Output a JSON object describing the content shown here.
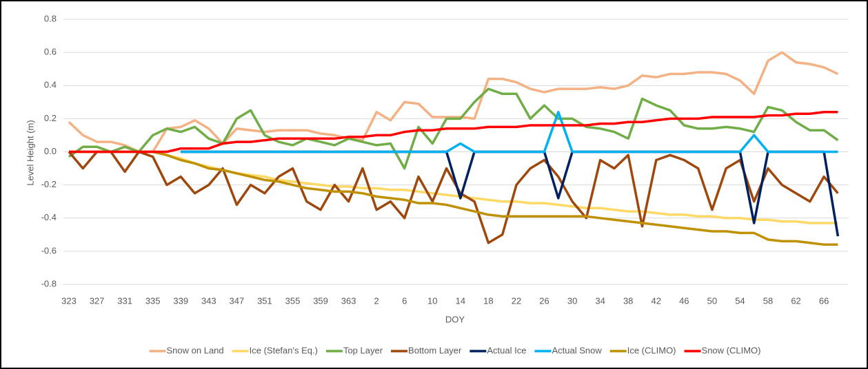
{
  "chart_data": {
    "type": "line",
    "y_label": "Level Height  (m)",
    "x_label": "DOY",
    "categories": [
      323,
      null,
      327,
      null,
      331,
      null,
      335,
      null,
      339,
      null,
      343,
      null,
      347,
      null,
      351,
      null,
      355,
      null,
      359,
      null,
      363,
      null,
      2,
      null,
      6,
      null,
      10,
      null,
      14,
      null,
      18,
      null,
      22,
      null,
      26,
      null,
      30,
      null,
      34,
      null,
      38,
      null,
      42,
      null,
      46,
      null,
      50,
      null,
      54,
      null,
      58,
      null,
      62,
      null,
      66,
      null
    ],
    "ylim": [
      -0.8,
      0.8
    ],
    "yticks": [
      -0.8,
      -0.6,
      -0.4,
      -0.2,
      {
        "value": 0,
        "label": "0.0"
      },
      0.2,
      0.4,
      0.6,
      0.8
    ],
    "grid": true,
    "legend": "bottom",
    "series": [
      {
        "name": "Snow on Land",
        "color": "#f4b183",
        "values": [
          0.18,
          0.1,
          0.06,
          0.06,
          0.04,
          0,
          0,
          0.14,
          0.15,
          0.19,
          0.14,
          0.05,
          0.14,
          0.13,
          0.12,
          0.13,
          0.13,
          0.13,
          0.11,
          0.1,
          0.08,
          0.07,
          0.24,
          0.19,
          0.3,
          0.29,
          0.21,
          0.21,
          0.21,
          0.2,
          0.44,
          0.44,
          0.42,
          0.38,
          0.36,
          0.38,
          0.38,
          0.38,
          0.39,
          0.38,
          0.4,
          0.46,
          0.45,
          0.47,
          0.47,
          0.48,
          0.48,
          0.47,
          0.43,
          0.35,
          0.55,
          0.6,
          0.54,
          0.53,
          0.51,
          0.47
        ]
      },
      {
        "name": "Ice (Stefan's Eq.)",
        "color": "#ffd966",
        "values": [
          0,
          0,
          0,
          0,
          0,
          0,
          0,
          -0.02,
          -0.04,
          -0.07,
          -0.09,
          -0.11,
          -0.13,
          -0.14,
          -0.15,
          -0.17,
          -0.18,
          -0.19,
          -0.2,
          -0.21,
          -0.21,
          -0.22,
          -0.22,
          -0.23,
          -0.23,
          -0.24,
          -0.25,
          -0.26,
          -0.27,
          -0.28,
          -0.29,
          -0.3,
          -0.3,
          -0.31,
          -0.31,
          -0.32,
          -0.33,
          -0.34,
          -0.34,
          -0.35,
          -0.36,
          -0.36,
          -0.37,
          -0.38,
          -0.38,
          -0.39,
          -0.39,
          -0.4,
          -0.4,
          -0.41,
          -0.41,
          -0.42,
          -0.42,
          -0.43,
          -0.43,
          -0.43
        ]
      },
      {
        "name": "Top Layer",
        "color": "#70ad47",
        "values": [
          -0.03,
          0.03,
          0.03,
          0,
          0.03,
          0,
          0.1,
          0.14,
          0.12,
          0.15,
          0.08,
          0.05,
          0.2,
          0.25,
          0.1,
          0.06,
          0.04,
          0.08,
          0.06,
          0.04,
          0.08,
          0.06,
          0.04,
          0.05,
          -0.1,
          0.15,
          0.05,
          0.2,
          0.2,
          0.3,
          0.38,
          0.35,
          0.35,
          0.2,
          0.28,
          0.2,
          0.2,
          0.15,
          0.14,
          0.12,
          0.08,
          0.32,
          0.28,
          0.25,
          0.16,
          0.14,
          0.14,
          0.15,
          0.14,
          0.12,
          0.27,
          0.25,
          0.18,
          0.13,
          0.13,
          0.07
        ]
      },
      {
        "name": "Bottom Layer",
        "color": "#9e480e",
        "values": [
          0,
          -0.1,
          0,
          0,
          -0.12,
          0,
          -0.03,
          -0.2,
          -0.15,
          -0.25,
          -0.2,
          -0.1,
          -0.32,
          -0.2,
          -0.25,
          -0.15,
          -0.1,
          -0.3,
          -0.35,
          -0.2,
          -0.3,
          -0.1,
          -0.35,
          -0.3,
          -0.4,
          -0.15,
          -0.3,
          -0.1,
          -0.25,
          -0.3,
          -0.55,
          -0.5,
          -0.2,
          -0.1,
          -0.05,
          -0.15,
          -0.3,
          -0.4,
          -0.05,
          -0.1,
          -0.02,
          -0.45,
          -0.05,
          -0.02,
          -0.05,
          -0.1,
          -0.35,
          -0.1,
          -0.05,
          -0.3,
          -0.1,
          -0.2,
          -0.25,
          -0.3,
          -0.15,
          -0.25
        ]
      },
      {
        "name": "Actual Ice",
        "color": "#002060",
        "values": [
          null,
          null,
          null,
          null,
          null,
          null,
          null,
          null,
          0,
          0,
          0,
          0,
          0,
          0,
          0,
          0,
          0,
          0,
          0,
          0,
          0,
          0,
          0,
          0,
          0,
          0,
          0,
          0,
          -0.28,
          0,
          0,
          0,
          0,
          0,
          0,
          -0.28,
          0,
          0,
          0,
          0,
          0,
          0,
          0,
          0,
          0,
          0,
          0,
          0,
          0,
          -0.43,
          0,
          0,
          0,
          0,
          0,
          -0.51
        ]
      },
      {
        "name": "Actual Snow",
        "color": "#00b0f0",
        "values": [
          null,
          null,
          null,
          null,
          null,
          null,
          null,
          null,
          0,
          0,
          0,
          0,
          0,
          0,
          0,
          0,
          0,
          0,
          0,
          0,
          0,
          0,
          0,
          0,
          0,
          0,
          0,
          0,
          0.05,
          0,
          0,
          0,
          0,
          0,
          0,
          0.24,
          0,
          0,
          0,
          0,
          0,
          0,
          0,
          0,
          0,
          0,
          0,
          0,
          0,
          0.1,
          0,
          0,
          0,
          0,
          0,
          0
        ]
      },
      {
        "name": "Ice (CLIMO)",
        "color": "#bf9000",
        "values": [
          0,
          0,
          0,
          0,
          0,
          0,
          0,
          -0.02,
          -0.05,
          -0.07,
          -0.1,
          -0.11,
          -0.13,
          -0.15,
          -0.17,
          -0.18,
          -0.2,
          -0.22,
          -0.23,
          -0.24,
          -0.24,
          -0.25,
          -0.27,
          -0.28,
          -0.29,
          -0.31,
          -0.31,
          -0.32,
          -0.34,
          -0.36,
          -0.38,
          -0.39,
          -0.39,
          -0.39,
          -0.39,
          -0.39,
          -0.39,
          -0.39,
          -0.4,
          -0.41,
          -0.42,
          -0.43,
          -0.44,
          -0.45,
          -0.46,
          -0.47,
          -0.48,
          -0.48,
          -0.49,
          -0.49,
          -0.53,
          -0.54,
          -0.54,
          -0.55,
          -0.56,
          -0.56
        ]
      },
      {
        "name": "Snow (CLIMO)",
        "color": "#ff0000",
        "values": [
          0,
          0,
          0,
          0,
          0,
          0,
          0,
          0,
          0.02,
          0.02,
          0.02,
          0.05,
          0.06,
          0.06,
          0.07,
          0.08,
          0.08,
          0.08,
          0.08,
          0.08,
          0.09,
          0.09,
          0.1,
          0.1,
          0.12,
          0.13,
          0.13,
          0.14,
          0.14,
          0.14,
          0.15,
          0.15,
          0.15,
          0.16,
          0.16,
          0.16,
          0.16,
          0.16,
          0.17,
          0.17,
          0.18,
          0.18,
          0.19,
          0.2,
          0.2,
          0.2,
          0.21,
          0.21,
          0.21,
          0.21,
          0.22,
          0.22,
          0.23,
          0.23,
          0.24,
          0.24
        ]
      }
    ]
  }
}
